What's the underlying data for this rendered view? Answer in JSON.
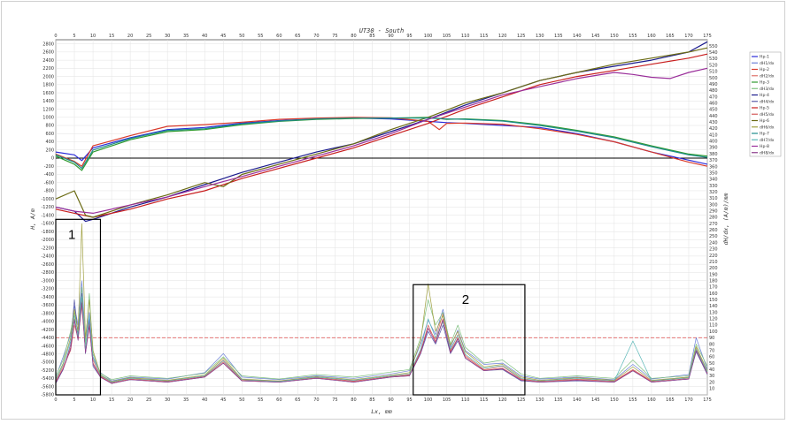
{
  "chart_data": {
    "type": "line",
    "title": "UT30 - South",
    "xlabel": "Lx, mm",
    "ylabel_left": "H, A/m",
    "ylabel_right": "dH/dx, (A/m)/mm",
    "xlim": [
      0,
      175
    ],
    "ylim_left": [
      -5800,
      2900
    ],
    "ylim_right": [
      0,
      560
    ],
    "x_ticks": [
      0,
      5,
      10,
      15,
      20,
      25,
      30,
      35,
      40,
      45,
      50,
      55,
      60,
      65,
      70,
      75,
      80,
      85,
      90,
      95,
      100,
      105,
      110,
      115,
      120,
      125,
      130,
      135,
      140,
      145,
      150,
      155,
      160,
      165,
      170,
      175
    ],
    "y_left_ticks": [
      2800,
      2600,
      2400,
      2200,
      2000,
      1800,
      1600,
      1400,
      1200,
      1000,
      800,
      600,
      400,
      200,
      0,
      -200,
      -400,
      -600,
      -800,
      -1000,
      -1200,
      -1400,
      -1600,
      -1800,
      -2000,
      -2200,
      -2400,
      -2600,
      -2800,
      -3000,
      -3200,
      -3400,
      -3600,
      -3800,
      -4000,
      -4200,
      -4400,
      -4600,
      -4800,
      -5000,
      -5200,
      -5400,
      -5600,
      -5800
    ],
    "y_right_ticks": [
      550,
      540,
      530,
      520,
      510,
      500,
      490,
      480,
      470,
      460,
      450,
      440,
      430,
      420,
      410,
      400,
      390,
      380,
      370,
      360,
      350,
      340,
      330,
      320,
      310,
      300,
      290,
      280,
      270,
      260,
      250,
      240,
      230,
      220,
      210,
      200,
      190,
      180,
      170,
      160,
      150,
      140,
      130,
      120,
      110,
      100,
      90,
      80,
      70,
      60,
      50,
      40,
      30,
      20,
      10
    ],
    "grid": true,
    "legend_position": "right",
    "reference_lines": [
      {
        "axis": "left",
        "y": 0,
        "color": "#000000",
        "style": "solid"
      },
      {
        "axis": "left",
        "y": -4400,
        "color": "#e06060",
        "style": "dashed"
      }
    ],
    "annotations": [
      {
        "label": "1",
        "x_range": [
          0,
          12
        ],
        "y_range_left": [
          -5800,
          -1500
        ]
      },
      {
        "label": "2",
        "x_range": [
          96,
          126
        ],
        "y_range_left": [
          -5800,
          -3100
        ]
      }
    ],
    "series": [
      {
        "name": "Hp-1",
        "axis": "left",
        "color": "#2b2bd9",
        "x": [
          0,
          5,
          7,
          10,
          20,
          30,
          40,
          50,
          60,
          70,
          80,
          90,
          100,
          105,
          110,
          120,
          130,
          140,
          150,
          160,
          170,
          175
        ],
        "y": [
          150,
          80,
          -60,
          250,
          500,
          700,
          750,
          860,
          920,
          960,
          980,
          960,
          900,
          870,
          850,
          800,
          750,
          600,
          400,
          150,
          -50,
          -150
        ]
      },
      {
        "name": "dH1/dx",
        "axis": "right",
        "color": "#6b7fd6",
        "x": [
          0,
          2,
          4,
          5,
          6,
          7,
          8,
          9,
          10,
          12,
          15,
          20,
          30,
          40,
          45,
          50,
          60,
          70,
          80,
          90,
          95,
          98,
          100,
          102,
          104,
          106,
          108,
          110,
          115,
          120,
          125,
          130,
          140,
          150,
          155,
          160,
          170,
          172,
          175
        ],
        "y": [
          28,
          60,
          95,
          140,
          110,
          180,
          85,
          130,
          60,
          35,
          22,
          28,
          25,
          35,
          65,
          28,
          24,
          30,
          26,
          33,
          38,
          80,
          118,
          95,
          135,
          75,
          102,
          70,
          48,
          50,
          30,
          25,
          28,
          24,
          48,
          25,
          32,
          90,
          40
        ]
      },
      {
        "name": "Hp-2",
        "axis": "left",
        "color": "#d93a2b",
        "x": [
          0,
          5,
          7,
          10,
          20,
          30,
          40,
          50,
          60,
          70,
          80,
          90,
          100,
          103,
          105,
          110,
          120,
          130,
          140,
          150,
          160,
          170,
          175
        ],
        "y": [
          100,
          -80,
          -200,
          300,
          550,
          780,
          820,
          880,
          950,
          980,
          1000,
          990,
          900,
          700,
          850,
          860,
          830,
          720,
          580,
          400,
          150,
          -100,
          -200
        ]
      },
      {
        "name": "dH2/dx",
        "axis": "right",
        "color": "#e0736b",
        "x": [
          0,
          2,
          4,
          5,
          6,
          7,
          8,
          9,
          10,
          12,
          15,
          20,
          30,
          40,
          45,
          50,
          60,
          70,
          80,
          90,
          95,
          98,
          100,
          102,
          104,
          106,
          108,
          110,
          115,
          120,
          125,
          130,
          140,
          150,
          155,
          160,
          170,
          172,
          175
        ],
        "y": [
          22,
          45,
          70,
          110,
          90,
          140,
          70,
          115,
          55,
          30,
          20,
          26,
          22,
          30,
          55,
          24,
          22,
          28,
          22,
          30,
          32,
          70,
          105,
          88,
          128,
          70,
          95,
          62,
          40,
          45,
          25,
          22,
          25,
          22,
          40,
          22,
          28,
          75,
          35
        ]
      },
      {
        "name": "Hp-3",
        "axis": "left",
        "color": "#2e9a2e",
        "x": [
          0,
          5,
          7,
          10,
          20,
          30,
          40,
          50,
          60,
          70,
          80,
          90,
          100,
          105,
          110,
          120,
          130,
          140,
          150,
          160,
          170,
          175
        ],
        "y": [
          50,
          -150,
          -300,
          150,
          450,
          650,
          700,
          820,
          900,
          950,
          970,
          980,
          1000,
          950,
          960,
          920,
          820,
          680,
          520,
          300,
          100,
          50
        ]
      },
      {
        "name": "dH3/dx",
        "axis": "right",
        "color": "#7fc07f",
        "x": [
          0,
          2,
          4,
          5,
          6,
          7,
          8,
          9,
          10,
          12,
          15,
          20,
          30,
          40,
          45,
          50,
          60,
          70,
          80,
          90,
          95,
          98,
          100,
          102,
          104,
          106,
          108,
          110,
          115,
          120,
          125,
          130,
          140,
          150,
          155,
          160,
          170,
          172,
          175
        ],
        "y": [
          30,
          55,
          100,
          130,
          100,
          170,
          80,
          160,
          65,
          34,
          24,
          30,
          26,
          34,
          60,
          30,
          25,
          32,
          28,
          36,
          40,
          90,
          150,
          110,
          130,
          80,
          110,
          75,
          50,
          55,
          33,
          26,
          30,
          26,
          55,
          26,
          30,
          80,
          45
        ]
      },
      {
        "name": "Hp-4",
        "axis": "left",
        "color": "#1a1a8c",
        "x": [
          0,
          5,
          8,
          10,
          20,
          30,
          40,
          50,
          60,
          70,
          80,
          90,
          100,
          110,
          120,
          130,
          140,
          150,
          160,
          170,
          175
        ],
        "y": [
          -1200,
          -1300,
          -1550,
          -1500,
          -1200,
          -950,
          -650,
          -350,
          -100,
          150,
          350,
          650,
          950,
          1300,
          1600,
          1900,
          2100,
          2250,
          2400,
          2600,
          2850
        ]
      },
      {
        "name": "dH4/dx",
        "axis": "right",
        "color": "#5c5ca8",
        "x": [
          0,
          2,
          4,
          5,
          6,
          7,
          8,
          9,
          10,
          12,
          15,
          20,
          30,
          40,
          45,
          50,
          60,
          70,
          80,
          90,
          95,
          98,
          100,
          102,
          104,
          106,
          108,
          110,
          115,
          120,
          125,
          130,
          140,
          150,
          155,
          160,
          170,
          172,
          175
        ],
        "y": [
          18,
          40,
          80,
          150,
          95,
          160,
          65,
          120,
          45,
          28,
          18,
          24,
          20,
          28,
          50,
          22,
          20,
          26,
          20,
          28,
          30,
          65,
          100,
          80,
          110,
          65,
          85,
          58,
          38,
          40,
          22,
          20,
          22,
          20,
          38,
          20,
          25,
          68,
          32
        ]
      },
      {
        "name": "Hp-5",
        "axis": "left",
        "color": "#c81e1e",
        "x": [
          0,
          5,
          10,
          20,
          30,
          40,
          50,
          60,
          70,
          80,
          90,
          100,
          110,
          120,
          130,
          140,
          150,
          160,
          170,
          175
        ],
        "y": [
          -1250,
          -1350,
          -1450,
          -1250,
          -1000,
          -800,
          -500,
          -250,
          0,
          250,
          550,
          850,
          1200,
          1500,
          1800,
          2000,
          2150,
          2300,
          2450,
          2550
        ]
      },
      {
        "name": "dH5/dx",
        "axis": "right",
        "color": "#d45a5a",
        "x": [
          0,
          2,
          4,
          5,
          6,
          7,
          8,
          9,
          10,
          12,
          15,
          20,
          30,
          40,
          45,
          50,
          60,
          70,
          80,
          90,
          95,
          98,
          100,
          102,
          104,
          106,
          108,
          110,
          115,
          120,
          125,
          130,
          140,
          150,
          155,
          160,
          170,
          172,
          175
        ],
        "y": [
          20,
          42,
          75,
          120,
          88,
          150,
          68,
          110,
          50,
          29,
          19,
          25,
          21,
          29,
          52,
          23,
          21,
          27,
          21,
          29,
          31,
          68,
          110,
          84,
          120,
          68,
          90,
          60,
          39,
          42,
          24,
          21,
          24,
          21,
          39,
          21,
          26,
          70,
          34
        ]
      },
      {
        "name": "Hp-6",
        "axis": "left",
        "color": "#6b6b14",
        "x": [
          0,
          5,
          8,
          10,
          20,
          30,
          40,
          45,
          50,
          60,
          70,
          80,
          90,
          100,
          110,
          120,
          130,
          140,
          150,
          160,
          170,
          175
        ],
        "y": [
          -1000,
          -800,
          -1400,
          -1450,
          -1150,
          -900,
          -600,
          -700,
          -400,
          -150,
          100,
          350,
          700,
          1000,
          1350,
          1600,
          1900,
          2100,
          2300,
          2450,
          2600,
          2700
        ]
      },
      {
        "name": "dH6/dx",
        "axis": "right",
        "color": "#a0a040",
        "x": [
          0,
          2,
          4,
          5,
          6,
          7,
          8,
          9,
          10,
          12,
          15,
          20,
          30,
          40,
          45,
          50,
          60,
          70,
          80,
          90,
          95,
          98,
          100,
          102,
          104,
          106,
          108,
          110,
          115,
          120,
          125,
          130,
          140,
          150,
          155,
          160,
          170,
          172,
          175
        ],
        "y": [
          25,
          50,
          90,
          135,
          100,
          270,
          90,
          150,
          70,
          32,
          21,
          27,
          23,
          31,
          58,
          25,
          22,
          29,
          24,
          31,
          35,
          85,
          175,
          100,
          125,
          78,
          100,
          68,
          44,
          48,
          28,
          23,
          27,
          23,
          44,
          23,
          28,
          76,
          38
        ]
      },
      {
        "name": "Hp-7",
        "axis": "left",
        "color": "#1e8c8c",
        "x": [
          0,
          5,
          7,
          10,
          20,
          30,
          40,
          50,
          60,
          70,
          80,
          90,
          100,
          105,
          110,
          120,
          130,
          140,
          150,
          160,
          170,
          175
        ],
        "y": [
          80,
          -100,
          -250,
          200,
          480,
          680,
          720,
          840,
          910,
          960,
          980,
          980,
          980,
          960,
          950,
          910,
          800,
          660,
          500,
          280,
          80,
          20
        ]
      },
      {
        "name": "dH7/dx",
        "axis": "right",
        "color": "#5cb8b8",
        "x": [
          0,
          2,
          4,
          5,
          6,
          7,
          8,
          9,
          10,
          12,
          15,
          20,
          30,
          40,
          45,
          50,
          60,
          70,
          80,
          90,
          95,
          98,
          100,
          102,
          104,
          106,
          108,
          110,
          115,
          120,
          125,
          130,
          140,
          150,
          155,
          160,
          170,
          172,
          175
        ],
        "y": [
          24,
          48,
          85,
          125,
          92,
          155,
          72,
          125,
          58,
          31,
          20,
          26,
          22,
          30,
          54,
          24,
          21,
          28,
          23,
          30,
          33,
          72,
          120,
          90,
          115,
          72,
          94,
          64,
          42,
          46,
          26,
          22,
          26,
          22,
          85,
          22,
          27,
          72,
          36
        ]
      },
      {
        "name": "Hp-8",
        "axis": "left",
        "color": "#9a2e9a",
        "x": [
          0,
          5,
          10,
          20,
          30,
          40,
          50,
          60,
          70,
          80,
          90,
          100,
          110,
          120,
          130,
          140,
          150,
          155,
          160,
          165,
          170,
          175
        ],
        "y": [
          -1200,
          -1300,
          -1350,
          -1150,
          -950,
          -700,
          -450,
          -200,
          50,
          300,
          600,
          950,
          1250,
          1550,
          1750,
          1950,
          2100,
          2050,
          1980,
          1950,
          2100,
          2200
        ]
      },
      {
        "name": "dH8/dx",
        "axis": "right",
        "color": "#8c3c8c",
        "x": [
          0,
          2,
          4,
          5,
          6,
          7,
          8,
          9,
          10,
          12,
          15,
          20,
          30,
          40,
          45,
          50,
          60,
          70,
          80,
          90,
          95,
          98,
          100,
          102,
          104,
          106,
          108,
          110,
          115,
          120,
          125,
          130,
          140,
          150,
          155,
          160,
          170,
          172,
          175
        ],
        "y": [
          19,
          41,
          72,
          118,
          86,
          145,
          66,
          108,
          48,
          28,
          18,
          24,
          20,
          28,
          50,
          22,
          20,
          26,
          20,
          28,
          30,
          66,
          105,
          82,
          118,
          66,
          88,
          58,
          38,
          41,
          23,
          20,
          23,
          20,
          38,
          20,
          25,
          70,
          33
        ]
      }
    ]
  }
}
